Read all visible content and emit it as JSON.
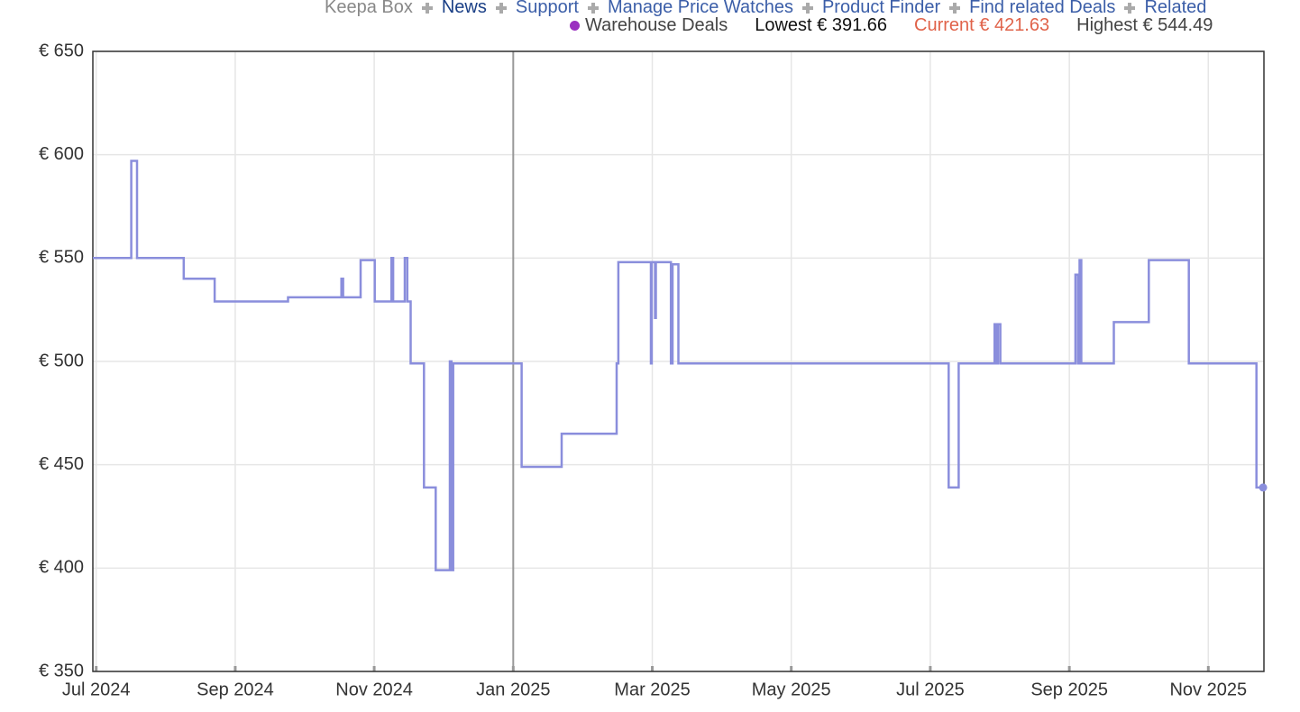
{
  "header": {
    "nav": [
      "Keepa Box",
      "News",
      "Support",
      "Manage Price Watches",
      "Product Finder",
      "Find related Deals",
      "Related"
    ],
    "stats": [
      "Lowest € 391.66",
      "Current € 421.63",
      "Highest € 544.49"
    ]
  },
  "chart_data": {
    "type": "line",
    "x": [
      2024.496,
      2024.542,
      2024.542,
      2024.549,
      2024.549,
      2024.605,
      2024.605,
      2024.642,
      2024.642,
      2024.73,
      2024.73,
      2024.794,
      2024.794,
      2024.796,
      2024.796,
      2024.817,
      2024.817,
      2024.834,
      2024.834,
      2024.854,
      2024.854,
      2024.856,
      2024.856,
      2024.87,
      2024.87,
      2024.873,
      2024.873,
      2024.877,
      2024.877,
      2024.893,
      2024.893,
      2024.907,
      2024.907,
      2024.924,
      2024.924,
      2024.926,
      2024.926,
      2024.928,
      2024.928,
      2025.01,
      2025.01,
      2025.058,
      2025.058,
      2025.124,
      2025.124,
      2025.126,
      2025.126,
      2025.165,
      2025.165,
      2025.166,
      2025.166,
      2025.17,
      2025.17,
      2025.171,
      2025.171,
      2025.189,
      2025.189,
      2025.191,
      2025.191,
      2025.198,
      2025.198,
      2025.522,
      2025.522,
      2025.534,
      2025.534,
      2025.577,
      2025.577,
      2025.579,
      2025.579,
      2025.581,
      2025.581,
      2025.584,
      2025.584,
      2025.674,
      2025.674,
      2025.677,
      2025.677,
      2025.679,
      2025.679,
      2025.681,
      2025.681,
      2025.72,
      2025.72,
      2025.762,
      2025.762,
      2025.81,
      2025.81,
      2025.891,
      2025.891,
      2025.899
    ],
    "series": [
      {
        "name": "Warehouse Deals",
        "color": "#8a8edc",
        "values": [
          550,
          550,
          597,
          597,
          550,
          550,
          540,
          540,
          529,
          529,
          531,
          531,
          540,
          540,
          531,
          531,
          549,
          549,
          529,
          529,
          550,
          550,
          529,
          529,
          550,
          550,
          529,
          529,
          499,
          499,
          439,
          439,
          399,
          399,
          500,
          500,
          399,
          399,
          499,
          499,
          449,
          449,
          465,
          465,
          499,
          499,
          548,
          548,
          499,
          499,
          548,
          548,
          521,
          521,
          548,
          548,
          499,
          499,
          547,
          547,
          499,
          499,
          439,
          439,
          499,
          499,
          518,
          518,
          499,
          499,
          518,
          518,
          499,
          499,
          542,
          542,
          499,
          499,
          549,
          549,
          499,
          499,
          519,
          519,
          549,
          549,
          499,
          499,
          439,
          439
        ]
      }
    ],
    "xlim": [
      2024.496,
      2025.9
    ],
    "ylim": [
      350,
      650
    ],
    "xticks": [
      {
        "value": 2024.5,
        "label": "Jul 2024"
      },
      {
        "value": 2024.6667,
        "label": "Sep 2024"
      },
      {
        "value": 2024.8333,
        "label": "Nov 2024"
      },
      {
        "value": 2025.0,
        "label": "Jan 2025"
      },
      {
        "value": 2025.1667,
        "label": "Mar 2025"
      },
      {
        "value": 2025.3333,
        "label": "May 2025"
      },
      {
        "value": 2025.5,
        "label": "Jul 2025"
      },
      {
        "value": 2025.6667,
        "label": "Sep 2025"
      },
      {
        "value": 2025.8333,
        "label": "Nov 2025"
      }
    ],
    "yticks": [
      {
        "value": 350,
        "label": "€ 350"
      },
      {
        "value": 400,
        "label": "€ 400"
      },
      {
        "value": 450,
        "label": "€ 450"
      },
      {
        "value": 500,
        "label": "€ 500"
      },
      {
        "value": 550,
        "label": "€ 550"
      },
      {
        "value": 600,
        "label": "€ 600"
      },
      {
        "value": 650,
        "label": "€ 650"
      }
    ],
    "grid": true
  }
}
